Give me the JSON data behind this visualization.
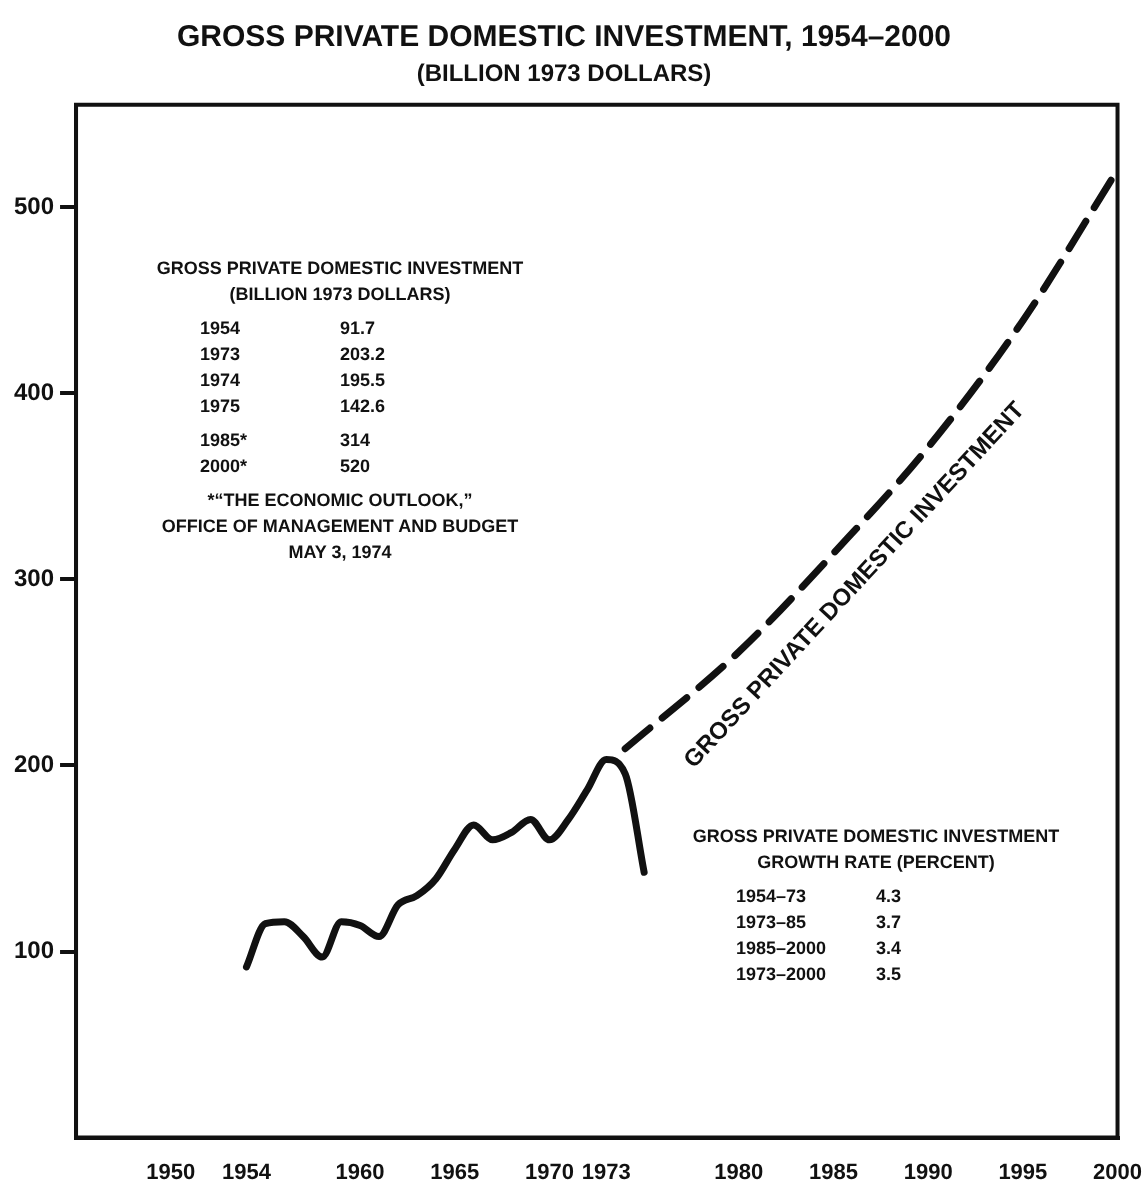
{
  "chart_data": {
    "type": "line",
    "title": "GROSS PRIVATE DOMESTIC INVESTMENT, 1954–2000",
    "subtitle": "(BILLION 1973 DOLLARS)",
    "series": [
      {
        "color": "#111111",
        "line_style": "solid",
        "x": [
          1954,
          1955,
          1956,
          1957,
          1958,
          1959,
          1960,
          1961,
          1962,
          1963,
          1964,
          1965,
          1966,
          1967,
          1968,
          1969,
          1970,
          1971,
          1972,
          1973,
          1974,
          1975
        ],
        "values": [
          91.7,
          115,
          116,
          108,
          97,
          116,
          114,
          108,
          125,
          130,
          139,
          155,
          168,
          160,
          164,
          171,
          160,
          171,
          187,
          203.2,
          195.5,
          142.6
        ]
      },
      {
        "name": "GROSS PRIVATE DOMESTIC INVESTMENT",
        "color": "#111111",
        "line_style": "dashed",
        "x": [
          1974,
          1980,
          1985,
          1990,
          1995,
          2000
        ],
        "values": [
          209,
          261,
          314,
          371,
          439,
          520
        ]
      }
    ],
    "xlim": [
      1945,
      2000
    ],
    "xticks": [
      1950,
      1954,
      1960,
      1965,
      1970,
      1973,
      1980,
      1985,
      1990,
      1995,
      2000
    ],
    "ylim": [
      0,
      555
    ],
    "yticks": [
      100,
      200,
      300,
      400,
      500
    ],
    "grid": false,
    "legend": false,
    "marker": "none",
    "annotations": [
      "GROSS PRIVATE DOMESTIC INVESTMENT",
      "(BILLION 1973 DOLLARS)",
      "1954\t91.7",
      "1973\t203.2",
      "1974\t195.5",
      "1975\t142.6",
      "1985*\t314",
      "2000*\t520",
      "*“THE ECONOMIC OUTLOOK,”",
      "OFFICE OF MANAGEMENT AND BUDGET",
      "MAY 3, 1974",
      "GROSS PRIVATE DOMESTIC INVESTMENT",
      "GROWTH RATE (PERCENT)",
      "1954–73\t4.3",
      "1973–85\t3.7",
      "1985–2000\t3.4",
      "1973–2000\t3.5"
    ]
  }
}
